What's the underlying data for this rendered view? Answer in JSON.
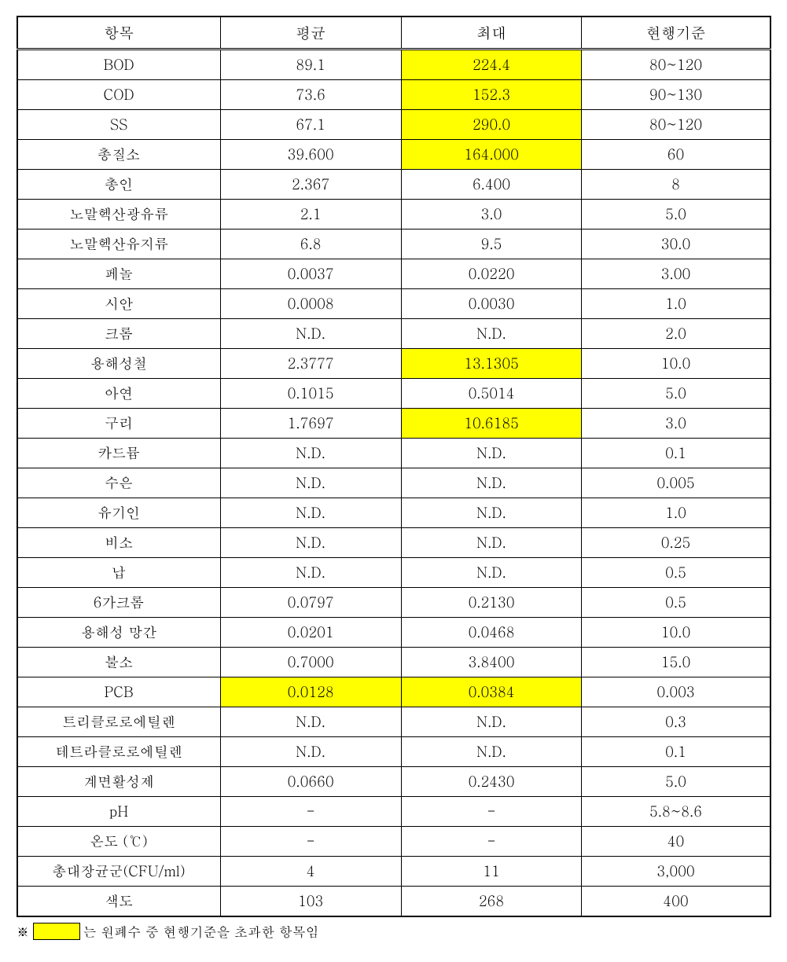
{
  "table": {
    "columns": [
      "항목",
      "평균",
      "최대",
      "현행기준"
    ],
    "highlight_color": "#ffff00",
    "border_color": "#000000",
    "background_color": "#ffffff",
    "font_size_header": 19,
    "font_size_body": 18,
    "rows": [
      {
        "item": "BOD",
        "avg": "89.1",
        "max": "224.4",
        "std": "80~120",
        "hl_avg": false,
        "hl_max": true
      },
      {
        "item": "COD",
        "avg": "73.6",
        "max": "152.3",
        "std": "90~130",
        "hl_avg": false,
        "hl_max": true
      },
      {
        "item": "SS",
        "avg": "67.1",
        "max": "290.0",
        "std": "80~120",
        "hl_avg": false,
        "hl_max": true
      },
      {
        "item": "총질소",
        "avg": "39.600",
        "max": "164.000",
        "std": "60",
        "hl_avg": false,
        "hl_max": true
      },
      {
        "item": "총인",
        "avg": "2.367",
        "max": "6.400",
        "std": "8",
        "hl_avg": false,
        "hl_max": false
      },
      {
        "item": "노말헥산광유류",
        "avg": "2.1",
        "max": "3.0",
        "std": "5.0",
        "hl_avg": false,
        "hl_max": false
      },
      {
        "item": "노말헥산유지류",
        "avg": "6.8",
        "max": "9.5",
        "std": "30.0",
        "hl_avg": false,
        "hl_max": false
      },
      {
        "item": "페놀",
        "avg": "0.0037",
        "max": "0.0220",
        "std": "3.00",
        "hl_avg": false,
        "hl_max": false
      },
      {
        "item": "시안",
        "avg": "0.0008",
        "max": "0.0030",
        "std": "1.0",
        "hl_avg": false,
        "hl_max": false
      },
      {
        "item": "크롬",
        "avg": "N.D.",
        "max": "N.D.",
        "std": "2.0",
        "hl_avg": false,
        "hl_max": false
      },
      {
        "item": "용해성철",
        "avg": "2.3777",
        "max": "13.1305",
        "std": "10.0",
        "hl_avg": false,
        "hl_max": true
      },
      {
        "item": "아연",
        "avg": "0.1015",
        "max": "0.5014",
        "std": "5.0",
        "hl_avg": false,
        "hl_max": false
      },
      {
        "item": "구리",
        "avg": "1.7697",
        "max": "10.6185",
        "std": "3.0",
        "hl_avg": false,
        "hl_max": true
      },
      {
        "item": "카드뮴",
        "avg": "N.D.",
        "max": "N.D.",
        "std": "0.1",
        "hl_avg": false,
        "hl_max": false
      },
      {
        "item": "수은",
        "avg": "N.D.",
        "max": "N.D.",
        "std": "0.005",
        "hl_avg": false,
        "hl_max": false
      },
      {
        "item": "유기인",
        "avg": "N.D.",
        "max": "N.D.",
        "std": "1.0",
        "hl_avg": false,
        "hl_max": false
      },
      {
        "item": "비소",
        "avg": "N.D.",
        "max": "N.D.",
        "std": "0.25",
        "hl_avg": false,
        "hl_max": false
      },
      {
        "item": "납",
        "avg": "N.D.",
        "max": "N.D.",
        "std": "0.5",
        "hl_avg": false,
        "hl_max": false
      },
      {
        "item": "6가크롬",
        "avg": "0.0797",
        "max": "0.2130",
        "std": "0.5",
        "hl_avg": false,
        "hl_max": false
      },
      {
        "item": "용해성 망간",
        "avg": "0.0201",
        "max": "0.0468",
        "std": "10.0",
        "hl_avg": false,
        "hl_max": false
      },
      {
        "item": "불소",
        "avg": "0.7000",
        "max": "3.8400",
        "std": "15.0",
        "hl_avg": false,
        "hl_max": false
      },
      {
        "item": "PCB",
        "avg": "0.0128",
        "max": "0.0384",
        "std": "0.003",
        "hl_avg": true,
        "hl_max": true
      },
      {
        "item": "트리클로로에틸렌",
        "avg": "N.D.",
        "max": "N.D.",
        "std": "0.3",
        "hl_avg": false,
        "hl_max": false
      },
      {
        "item": "테트라클로로에틸렌",
        "avg": "N.D.",
        "max": "N.D.",
        "std": "0.1",
        "hl_avg": false,
        "hl_max": false
      },
      {
        "item": "계면활성제",
        "avg": "0.0660",
        "max": "0.2430",
        "std": "5.0",
        "hl_avg": false,
        "hl_max": false
      },
      {
        "item": "pH",
        "avg": "-",
        "max": "-",
        "std": "5.8~8.6",
        "hl_avg": false,
        "hl_max": false
      },
      {
        "item": "온도 (℃)",
        "avg": "-",
        "max": "-",
        "std": "40",
        "hl_avg": false,
        "hl_max": false
      },
      {
        "item": "총대장균군(CFU/ml)",
        "avg": "4",
        "max": "11",
        "std": "3,000",
        "hl_avg": false,
        "hl_max": false
      },
      {
        "item": "색도",
        "avg": "103",
        "max": "268",
        "std": "400",
        "hl_avg": false,
        "hl_max": false
      }
    ]
  },
  "footnote": {
    "prefix": "※",
    "text": "는 원폐수 중 현행기준을 초과한 항목임"
  }
}
